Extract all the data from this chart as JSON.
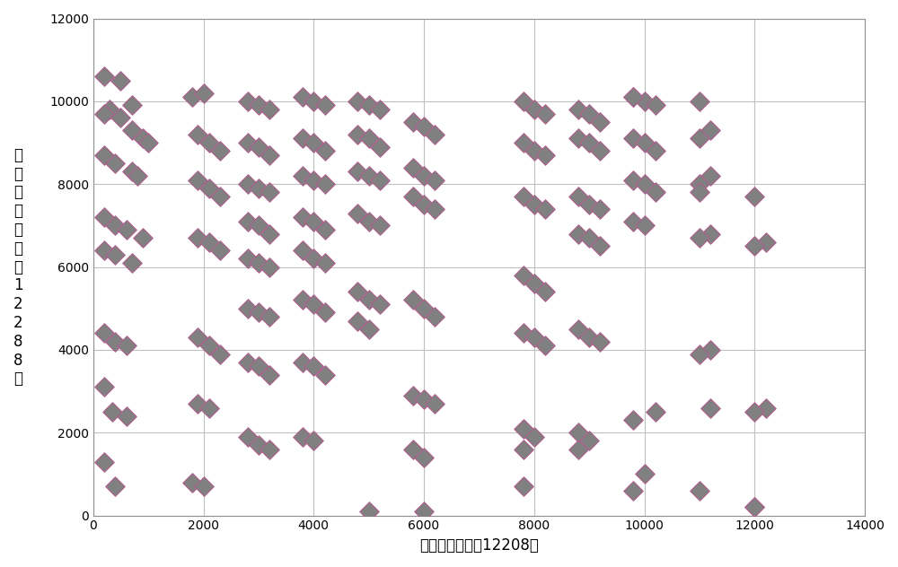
{
  "xlabel": "列方向（图像宽12208）",
  "ylabel_lines": [
    "行",
    "方",
    "向",
    "（",
    "图",
    "像",
    "高",
    "1",
    "2",
    "2",
    "8",
    "8",
    "）"
  ],
  "xlim": [
    0,
    14000
  ],
  "ylim": [
    0,
    12000
  ],
  "xticks": [
    0,
    2000,
    4000,
    6000,
    8000,
    10000,
    12000,
    14000
  ],
  "yticks": [
    0,
    2000,
    4000,
    6000,
    8000,
    10000,
    12000
  ],
  "marker_color": "#808080",
  "marker_edge_color": "#b06090",
  "background_color": "#ffffff",
  "grid_color": "#c0c0c0",
  "points_x": [
    200,
    500,
    300,
    700,
    200,
    500,
    700,
    900,
    1000,
    200,
    400,
    700,
    800,
    200,
    400,
    600,
    900,
    200,
    400,
    700,
    200,
    400,
    600,
    200,
    350,
    600,
    200,
    400,
    1800,
    2000,
    1900,
    2100,
    2300,
    1900,
    2100,
    2300,
    1900,
    2100,
    2300,
    1900,
    2100,
    2300,
    1900,
    2100,
    1800,
    2000,
    2800,
    3000,
    3200,
    2800,
    3000,
    3200,
    2800,
    3000,
    3200,
    2800,
    3000,
    3200,
    2800,
    3000,
    3200,
    2800,
    3000,
    3200,
    2800,
    3000,
    3200,
    2800,
    3000,
    3200,
    3800,
    4000,
    4200,
    3800,
    4000,
    4200,
    3800,
    4000,
    4200,
    3800,
    4000,
    4200,
    3800,
    4000,
    4200,
    3800,
    4000,
    4200,
    3800,
    4000,
    4200,
    3800,
    4000,
    4800,
    5000,
    5200,
    4800,
    5000,
    5200,
    4800,
    5000,
    5200,
    4800,
    5000,
    5200,
    4800,
    5000,
    5200,
    4800,
    5000,
    5000,
    5800,
    6000,
    6200,
    5800,
    6000,
    6200,
    5800,
    6000,
    6200,
    5800,
    6000,
    6200,
    5800,
    6000,
    6200,
    5800,
    6000,
    6000,
    7800,
    8000,
    8200,
    7800,
    8000,
    8200,
    7800,
    8000,
    8200,
    7800,
    8000,
    8200,
    7800,
    8000,
    8200,
    7800,
    8000,
    7800,
    7800,
    8800,
    9000,
    9200,
    8800,
    9000,
    9200,
    8800,
    9000,
    9200,
    8800,
    9000,
    9200,
    8800,
    9000,
    9200,
    8800,
    9000,
    8800,
    9800,
    10000,
    10200,
    9800,
    10000,
    10200,
    9800,
    10000,
    10200,
    9800,
    10000,
    10200,
    9800,
    10000,
    9800,
    9800,
    11000,
    11200,
    11000,
    11200,
    11000,
    11200,
    11000,
    11200,
    11000,
    11200,
    11000,
    11000,
    12000,
    12200,
    12000,
    12200,
    12000,
    12000,
    12000
  ],
  "points_y": [
    10600,
    10500,
    9800,
    9900,
    9700,
    9600,
    9300,
    9100,
    9000,
    8700,
    8500,
    8300,
    8200,
    7200,
    7000,
    6900,
    6700,
    6400,
    6300,
    6100,
    4400,
    4200,
    4100,
    3100,
    2500,
    2400,
    1300,
    700,
    10100,
    10200,
    9200,
    9000,
    8800,
    8100,
    7900,
    7700,
    6700,
    6600,
    6400,
    4300,
    4100,
    3900,
    2700,
    2600,
    800,
    700,
    10000,
    9900,
    9800,
    9000,
    8900,
    8700,
    8000,
    7900,
    7800,
    7100,
    7000,
    6800,
    6200,
    6100,
    6000,
    5000,
    4900,
    4800,
    3700,
    3600,
    3400,
    1900,
    1700,
    1600,
    10100,
    10000,
    9900,
    9100,
    9000,
    8800,
    8200,
    8100,
    8000,
    7200,
    7100,
    6900,
    6400,
    6200,
    6100,
    5200,
    5100,
    4900,
    3700,
    3600,
    3400,
    1900,
    1800,
    10000,
    9900,
    9800,
    9200,
    9100,
    8900,
    8300,
    8200,
    8100,
    7300,
    7100,
    7000,
    5400,
    5200,
    5100,
    4700,
    4500,
    100,
    9500,
    9400,
    9200,
    8400,
    8200,
    8100,
    7700,
    7500,
    7400,
    5200,
    5000,
    4800,
    2900,
    2800,
    2700,
    1600,
    1400,
    100,
    10000,
    9800,
    9700,
    9000,
    8800,
    8700,
    7700,
    7500,
    7400,
    5800,
    5600,
    5400,
    4400,
    4300,
    4100,
    2100,
    1900,
    1600,
    700,
    9800,
    9700,
    9500,
    9100,
    9000,
    8800,
    7700,
    7500,
    7400,
    6800,
    6700,
    6500,
    4500,
    4300,
    4200,
    2000,
    1800,
    1600,
    10100,
    10000,
    9900,
    9100,
    9000,
    8800,
    8100,
    8000,
    7800,
    7100,
    7000,
    2500,
    2300,
    1000,
    600,
    10100,
    10000,
    9300,
    9100,
    8200,
    8000,
    6800,
    6700,
    4000,
    3900,
    2600,
    600,
    7800,
    7700,
    6600,
    6500,
    2600,
    2500,
    200,
    200
  ]
}
